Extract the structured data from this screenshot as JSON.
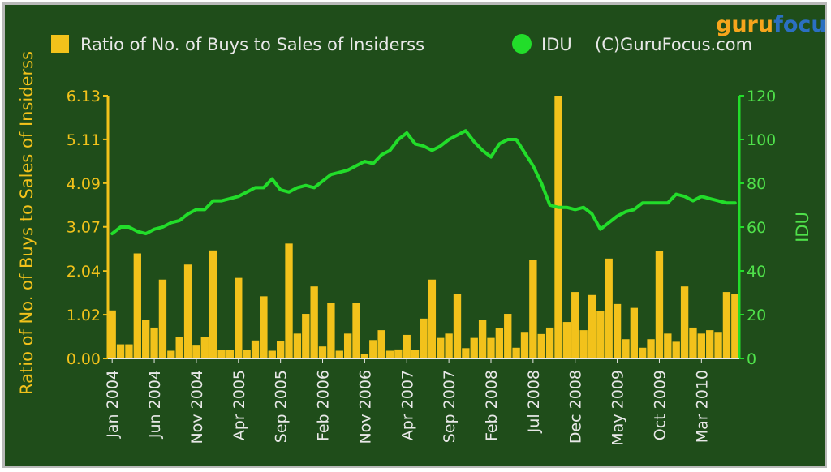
{
  "logo": {
    "part1": "guru",
    "part2": "focus"
  },
  "colors": {
    "background": "#1f4d1a",
    "bars": "#f2c21b",
    "line": "#22dd2a",
    "frame": "#b9b9b9",
    "x_tick_text": "#e8e8e8"
  },
  "chart_data": {
    "type": "bar",
    "y_label_left": "Ratio of No. of Buys to Sales of Insiderss",
    "y_label_right": "IDU",
    "legend": [
      {
        "label": "Ratio of No. of Buys to Sales of Insiderss",
        "color": "#f2c21b",
        "marker": "square"
      },
      {
        "label": "IDU",
        "color": "#22dd2a",
        "marker": "circle"
      },
      {
        "label": "(C)GuruFocus.com",
        "color": "",
        "marker": "none"
      }
    ],
    "legend_position": "top",
    "grid": false,
    "y_left_ticks": [
      "0.00",
      "1.02",
      "2.04",
      "3.07",
      "4.09",
      "5.11",
      "6.13"
    ],
    "y_left_range": [
      0,
      6.13
    ],
    "y_right_ticks": [
      "0",
      "20",
      "40",
      "60",
      "80",
      "100",
      "120"
    ],
    "y_right_range": [
      0,
      120
    ],
    "x_tick_labels": [
      "Jan 2004",
      "Jun 2004",
      "Nov 2004",
      "Apr 2005",
      "Sep 2005",
      "Feb 2006",
      "Nov 2006",
      "Apr 2007",
      "Sep 2007",
      "Feb 2008",
      "Jul 2008",
      "Dec 2008",
      "May 2009",
      "Oct 2009",
      "Mar 2010"
    ],
    "x_tick_positions": [
      0,
      5,
      10,
      15,
      20,
      25,
      30,
      35,
      40,
      45,
      50,
      55,
      60,
      65,
      70
    ],
    "x_count": 75,
    "series": [
      {
        "name": "Ratio of No. of Buys to Sales of Insiderss",
        "type": "bar",
        "axis": "left",
        "values": [
          1.12,
          0.33,
          0.33,
          2.45,
          0.9,
          0.72,
          1.84,
          0.18,
          0.5,
          2.19,
          0.3,
          0.5,
          2.52,
          0.2,
          0.2,
          1.88,
          0.2,
          0.42,
          1.45,
          0.18,
          0.4,
          2.68,
          0.58,
          1.04,
          1.68,
          0.28,
          1.3,
          0.18,
          0.58,
          1.3,
          0.1,
          0.43,
          0.66,
          0.18,
          0.21,
          0.55,
          0.2,
          0.93,
          1.84,
          0.48,
          0.58,
          1.5,
          0.24,
          0.48,
          0.9,
          0.48,
          0.7,
          1.04,
          0.25,
          0.62,
          2.3,
          0.57,
          0.72,
          6.13,
          0.85,
          1.55,
          0.66,
          1.48,
          1.1,
          2.33,
          1.27,
          0.45,
          1.18,
          0.25,
          0.45,
          2.5,
          0.58,
          0.39,
          1.68,
          0.72,
          0.58,
          0.66,
          0.62,
          1.55,
          1.5
        ]
      },
      {
        "name": "IDU",
        "type": "line",
        "axis": "right",
        "values": [
          57,
          60,
          60,
          58,
          57,
          59,
          60,
          62,
          63,
          66,
          68,
          68,
          72,
          72,
          73,
          74,
          76,
          78,
          78,
          82,
          77,
          76,
          78,
          79,
          78,
          81,
          84,
          85,
          86,
          88,
          90,
          89,
          93,
          95,
          100,
          103,
          98,
          97,
          95,
          97,
          100,
          102,
          104,
          99,
          95,
          92,
          98,
          100,
          100,
          94,
          88,
          80,
          70,
          69,
          69,
          68,
          69,
          66,
          59,
          62,
          65,
          67,
          68,
          71,
          71,
          71,
          71,
          75,
          74,
          72,
          74,
          73,
          72,
          71,
          71
        ]
      }
    ]
  }
}
